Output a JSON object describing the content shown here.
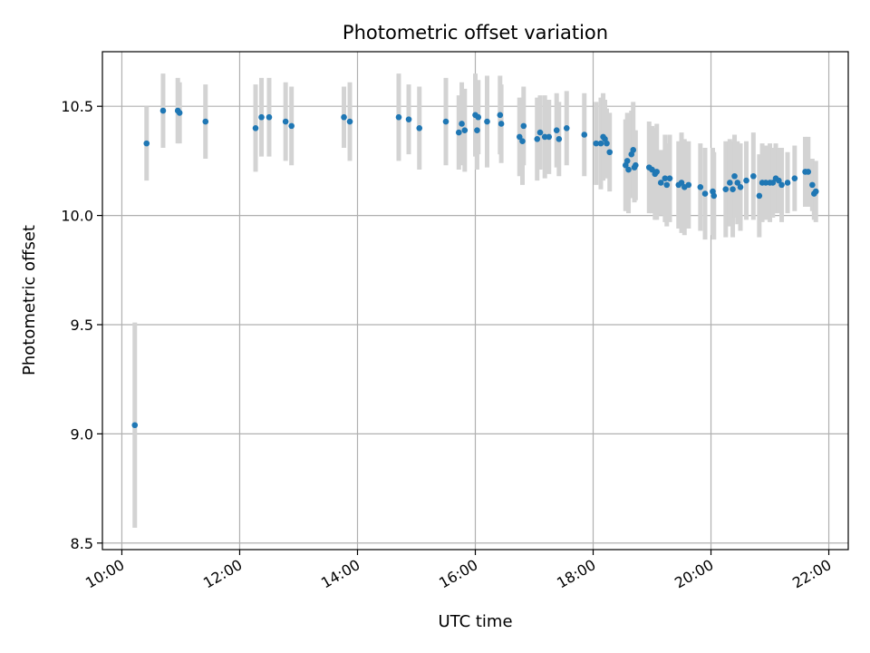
{
  "chart_data": {
    "type": "scatter",
    "title": "Photometric offset variation",
    "xlabel": "UTC time",
    "ylabel": "Photometric offset",
    "x_unit": "hours UTC",
    "xlim": [
      9.67,
      22.33
    ],
    "ylim": [
      8.47,
      10.75
    ],
    "x_ticks": [
      10,
      12,
      14,
      16,
      18,
      20,
      22
    ],
    "x_tick_labels": [
      "10:00",
      "12:00",
      "14:00",
      "16:00",
      "18:00",
      "20:00",
      "22:00"
    ],
    "y_ticks": [
      8.5,
      9.0,
      9.5,
      10.0,
      10.5
    ],
    "y_tick_labels": [
      "8.5",
      "9.0",
      "9.5",
      "10.0",
      "10.5"
    ],
    "grid": true,
    "colors": {
      "point": "#1f77b4",
      "errorbar": "#d3d3d3",
      "grid": "#b0b0b0"
    },
    "series": [
      {
        "x": [
          10.22,
          10.42,
          10.7,
          10.95,
          10.98,
          11.42,
          12.27,
          12.37,
          12.5,
          12.78,
          12.88,
          13.77,
          13.87,
          14.7,
          14.87,
          15.05,
          15.5,
          15.72,
          15.77,
          15.82,
          16.0,
          16.03,
          16.05,
          16.2,
          16.42,
          16.44,
          16.75,
          16.8,
          16.82,
          17.05,
          17.1,
          17.18,
          17.25,
          17.38,
          17.42,
          17.55,
          17.85,
          18.05,
          18.13,
          18.17,
          18.2,
          18.23,
          18.28,
          18.55,
          18.58,
          18.6,
          18.65,
          18.68,
          18.7,
          18.72,
          18.95,
          19.0,
          19.05,
          19.08,
          19.15,
          19.22,
          19.25,
          19.3,
          19.45,
          19.5,
          19.55,
          19.62,
          19.82,
          19.9,
          20.03,
          20.05,
          20.25,
          20.32,
          20.37,
          20.4,
          20.45,
          20.5,
          20.6,
          20.72,
          20.82,
          20.87,
          20.93,
          21.0,
          21.05,
          21.1,
          21.15,
          21.2,
          21.3,
          21.42,
          21.6,
          21.65,
          21.72,
          21.75,
          21.78
        ],
        "y": [
          9.04,
          10.33,
          10.48,
          10.48,
          10.47,
          10.43,
          10.4,
          10.45,
          10.45,
          10.43,
          10.41,
          10.45,
          10.43,
          10.45,
          10.44,
          10.4,
          10.43,
          10.38,
          10.42,
          10.39,
          10.46,
          10.39,
          10.45,
          10.43,
          10.46,
          10.42,
          10.36,
          10.34,
          10.41,
          10.35,
          10.38,
          10.36,
          10.36,
          10.39,
          10.35,
          10.4,
          10.37,
          10.33,
          10.33,
          10.36,
          10.35,
          10.33,
          10.29,
          10.23,
          10.25,
          10.21,
          10.28,
          10.3,
          10.22,
          10.23,
          10.22,
          10.21,
          10.19,
          10.2,
          10.15,
          10.17,
          10.14,
          10.17,
          10.14,
          10.15,
          10.13,
          10.14,
          10.13,
          10.1,
          10.11,
          10.09,
          10.12,
          10.15,
          10.12,
          10.18,
          10.15,
          10.13,
          10.16,
          10.18,
          10.09,
          10.15,
          10.15,
          10.15,
          10.15,
          10.17,
          10.16,
          10.14,
          10.15,
          10.17,
          10.2,
          10.2,
          10.14,
          10.1,
          10.11
        ],
        "yerr": [
          0.47,
          0.17,
          0.17,
          0.15,
          0.14,
          0.17,
          0.2,
          0.18,
          0.18,
          0.18,
          0.18,
          0.14,
          0.18,
          0.2,
          0.16,
          0.19,
          0.2,
          0.17,
          0.19,
          0.19,
          0.19,
          0.18,
          0.17,
          0.21,
          0.18,
          0.18,
          0.18,
          0.2,
          0.18,
          0.19,
          0.17,
          0.19,
          0.17,
          0.17,
          0.17,
          0.17,
          0.19,
          0.19,
          0.21,
          0.2,
          0.18,
          0.16,
          0.18,
          0.21,
          0.22,
          0.2,
          0.2,
          0.22,
          0.16,
          0.16,
          0.21,
          0.2,
          0.21,
          0.22,
          0.15,
          0.2,
          0.19,
          0.2,
          0.2,
          0.23,
          0.22,
          0.2,
          0.2,
          0.21,
          0.2,
          0.2,
          0.22,
          0.2,
          0.22,
          0.19,
          0.19,
          0.2,
          0.18,
          0.2,
          0.19,
          0.18,
          0.17,
          0.18,
          0.16,
          0.16,
          0.15,
          0.17,
          0.14,
          0.15,
          0.16,
          0.16,
          0.12,
          0.12,
          0.14
        ]
      }
    ]
  }
}
